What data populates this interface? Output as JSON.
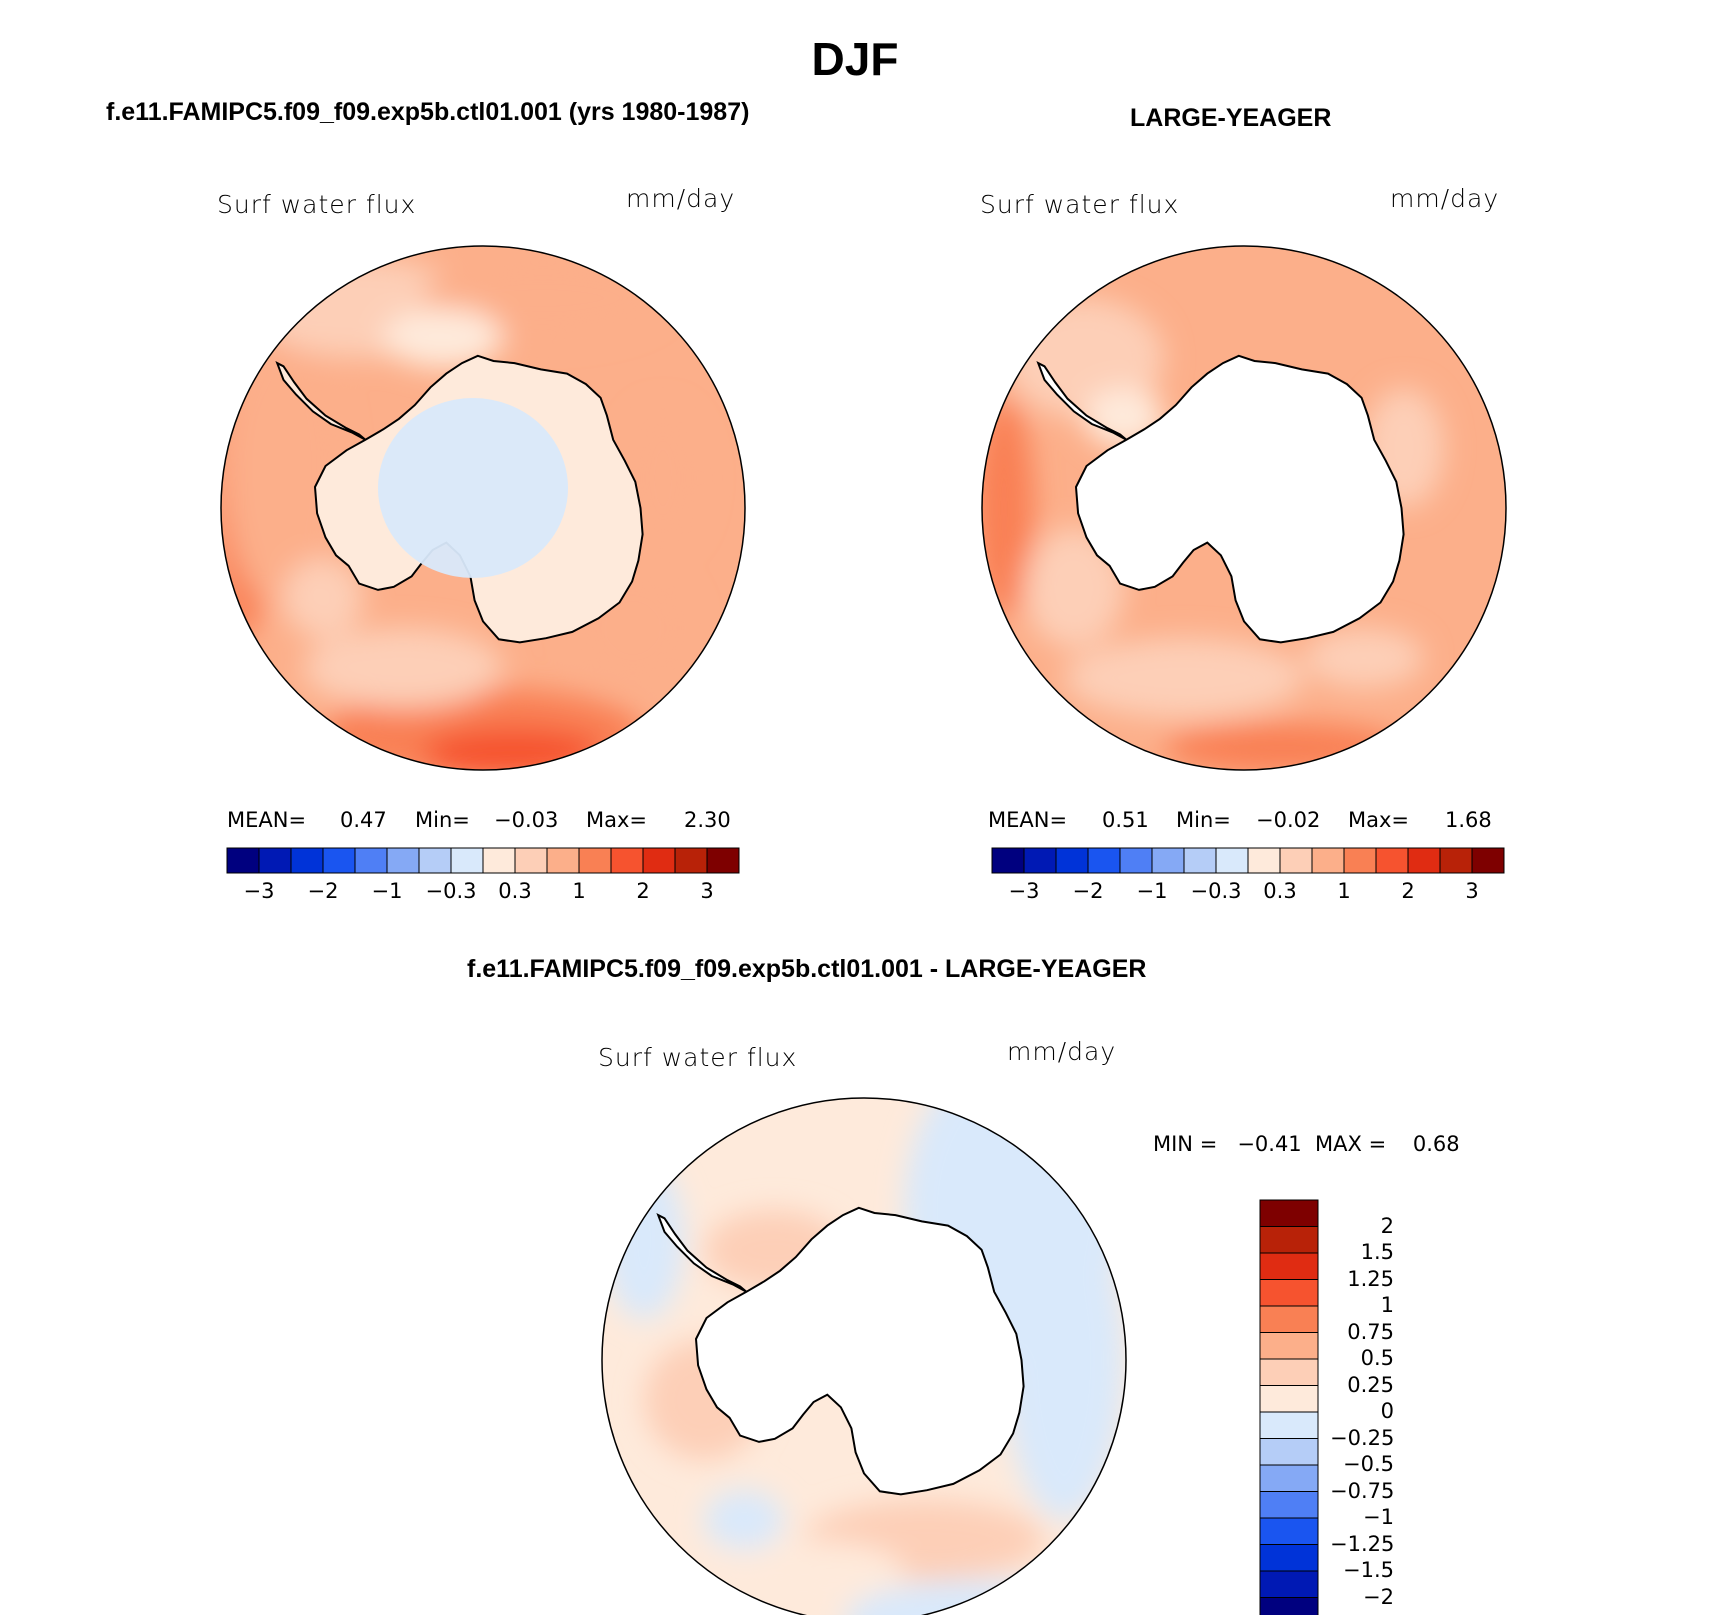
{
  "figure": {
    "title": "DJF",
    "colors": {
      "palette": [
        "#00007f",
        "#0019b4",
        "#0033d8",
        "#1a55f0",
        "#4f7ff5",
        "#85a9f5",
        "#b5cdf7",
        "#d9e9fb",
        "#feeadb",
        "#fdcfb7",
        "#fcaf8a",
        "#f98054",
        "#f6532f",
        "#e02c12",
        "#b82208",
        "#7e0000"
      ],
      "land": "#ffffff",
      "coast": "#000000"
    }
  },
  "panels": [
    {
      "id": "model",
      "subtitle": "f.e11.FAMIPC5.f09_f09.exp5b.ctl01.001 (yrs 1980-1987)",
      "variable": "Surf water flux",
      "units": "mm/day",
      "stats": {
        "mean_label": "MEAN=",
        "mean": "0.47",
        "min_label": "Min=",
        "min": "−0.03",
        "max_label": "Max=",
        "max": "2.30"
      },
      "colorbar_ticks": [
        "−3",
        "−2",
        "−1",
        "−0.3",
        "0.3",
        "1",
        "2",
        "3"
      ]
    },
    {
      "id": "obs",
      "subtitle": "LARGE-YEAGER",
      "variable": "Surf water flux",
      "units": "mm/day",
      "stats": {
        "mean_label": "MEAN=",
        "mean": "0.51",
        "min_label": "Min=",
        "min": "−0.02",
        "max_label": "Max=",
        "max": "1.68"
      },
      "colorbar_ticks": [
        "−3",
        "−2",
        "−1",
        "−0.3",
        "0.3",
        "1",
        "2",
        "3"
      ]
    },
    {
      "id": "diff",
      "subtitle": "f.e11.FAMIPC5.f09_f09.exp5b.ctl01.001 - LARGE-YEAGER",
      "variable": "Surf water flux",
      "units": "mm/day",
      "minmax": "MIN =   −0.41  MAX =    0.68",
      "colorbar_labels": [
        "2",
        "1.5",
        "1.25",
        "1",
        "0.75",
        "0.5",
        "0.25",
        "0",
        "−0.25",
        "−0.5",
        "−0.75",
        "−1",
        "−1.25",
        "−1.5",
        "−2"
      ]
    }
  ]
}
